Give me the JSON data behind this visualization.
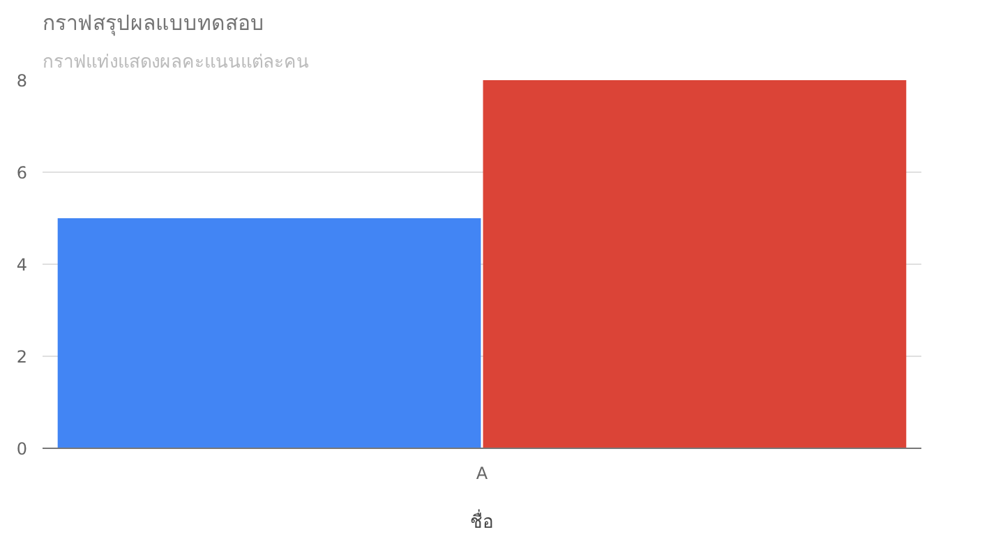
{
  "chart_data": {
    "type": "bar",
    "title": "กราฟสรุปผลแบบทดสอบ",
    "subtitle": "กราฟแท่งแสดงผลคะแนนแต่ละคน",
    "xlabel": "ชื่อ",
    "categories": [
      "A"
    ],
    "series": [
      {
        "color": "#4285f4",
        "values": [
          5
        ]
      },
      {
        "color": "#db4437",
        "values": [
          8
        ]
      }
    ],
    "ylim": [
      0,
      8
    ],
    "yticks": [
      0,
      2,
      4,
      6,
      8
    ],
    "grid": "y"
  }
}
